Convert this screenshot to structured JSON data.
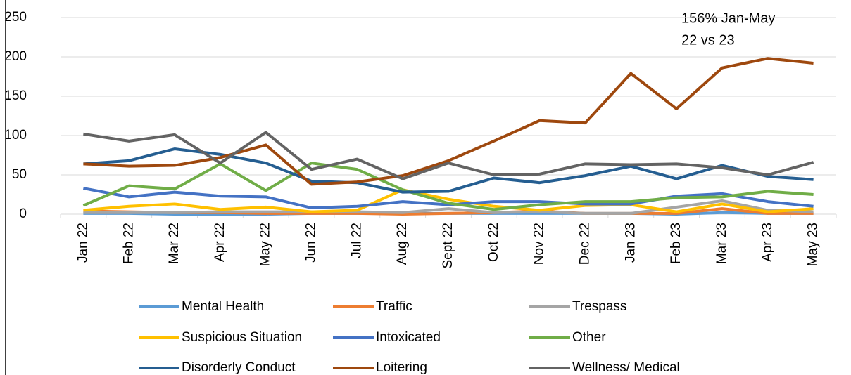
{
  "chart_data": {
    "type": "line",
    "annotations": [
      "156% Jan-May",
      "22 vs 23"
    ],
    "categories": [
      "Jan 22",
      "Feb 22",
      "Mar 22",
      "Apr 22",
      "May 22",
      "Jun 22",
      "Jul 22",
      "Aug 22",
      "Sept 22",
      "Oct 22",
      "Nov 22",
      "Dec 22",
      "Jan 23",
      "Feb 23",
      "Mar 23",
      "Apr 23",
      "May 23"
    ],
    "series": [
      {
        "name": "Mental Health",
        "color": "#5b9bd5",
        "values": [
          1,
          1,
          0,
          0,
          0,
          1,
          1,
          1,
          1,
          1,
          1,
          1,
          1,
          0,
          2,
          1,
          1
        ]
      },
      {
        "name": "Traffic",
        "color": "#ed7d31",
        "values": [
          4,
          3,
          2,
          2,
          1,
          1,
          1,
          0,
          1,
          2,
          4,
          1,
          1,
          1,
          7,
          1,
          1
        ]
      },
      {
        "name": "Trespass",
        "color": "#a5a5a5",
        "values": [
          2,
          2,
          2,
          3,
          3,
          3,
          3,
          2,
          7,
          2,
          3,
          1,
          1,
          9,
          17,
          5,
          3
        ]
      },
      {
        "name": "Suspicious Situation",
        "color": "#ffc000",
        "values": [
          5,
          10,
          13,
          6,
          9,
          3,
          5,
          31,
          19,
          10,
          5,
          11,
          12,
          3,
          13,
          3,
          7
        ]
      },
      {
        "name": "Intoxicated",
        "color": "#4472c4",
        "values": [
          33,
          22,
          28,
          23,
          22,
          8,
          10,
          16,
          12,
          16,
          16,
          13,
          13,
          23,
          26,
          16,
          10
        ]
      },
      {
        "name": "Other",
        "color": "#70ad47",
        "values": [
          11,
          36,
          32,
          64,
          30,
          65,
          57,
          31,
          14,
          6,
          12,
          16,
          16,
          21,
          22,
          29,
          25
        ]
      },
      {
        "name": "Disorderly Conduct",
        "color": "#255e91",
        "values": [
          64,
          68,
          83,
          76,
          65,
          42,
          40,
          28,
          29,
          46,
          40,
          49,
          61,
          45,
          62,
          48,
          44
        ]
      },
      {
        "name": "Loitering",
        "color": "#9e480e",
        "values": [
          64,
          61,
          62,
          72,
          88,
          38,
          41,
          49,
          68,
          93,
          119,
          116,
          179,
          134,
          186,
          198,
          192
        ]
      },
      {
        "name": "Wellness/ Medical",
        "color": "#636363",
        "values": [
          102,
          93,
          101,
          65,
          104,
          57,
          70,
          45,
          65,
          50,
          51,
          64,
          63,
          64,
          59,
          50,
          66
        ]
      }
    ],
    "ylim": [
      0,
      250
    ],
    "yticks": [
      0,
      50,
      100,
      150,
      200,
      250
    ],
    "grid": true
  }
}
